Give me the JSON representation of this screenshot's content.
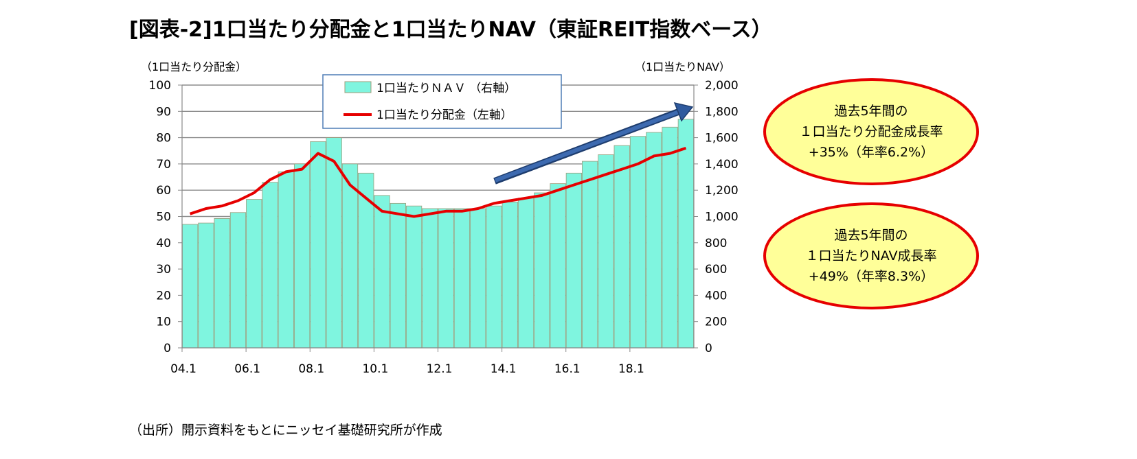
{
  "title": "[図表-2]1口当たり分配金と1口当たりNAV（東証REIT指数ベース）",
  "source": "（出所）開示資料をもとにニッセイ基礎研究所が作成",
  "chart_data": {
    "type": "bar",
    "left_axis_label": "（1口当たり分配金）",
    "right_axis_label": "（1口当たりNAV）",
    "left_ylim": [
      0,
      100
    ],
    "right_ylim": [
      0,
      2000
    ],
    "left_ticks": [
      "0",
      "10",
      "20",
      "30",
      "40",
      "50",
      "60",
      "70",
      "80",
      "90",
      "100"
    ],
    "right_ticks": [
      "0",
      "200",
      "400",
      "600",
      "800",
      "1,000",
      "1,200",
      "1,400",
      "1,600",
      "1,800",
      "2,000"
    ],
    "x_tick_labels": [
      "04.1",
      "06.1",
      "08.1",
      "10.1",
      "12.1",
      "14.1",
      "16.1",
      "18.1"
    ],
    "grid": true,
    "legend_position": "top-center",
    "series": [
      {
        "name": "1口当たりＮＡＶ （右軸）",
        "kind": "bar",
        "axis": "right",
        "color": "#7ff5df",
        "x": [
          "04.1",
          "04.7",
          "05.1",
          "05.7",
          "06.1",
          "06.7",
          "07.1",
          "07.7",
          "08.1",
          "08.7",
          "09.1",
          "09.7",
          "10.1",
          "10.7",
          "11.1",
          "11.7",
          "12.1",
          "12.7",
          "13.1",
          "13.7",
          "14.1",
          "14.7",
          "15.1",
          "15.7",
          "16.1",
          "16.7",
          "17.1",
          "17.7",
          "18.1",
          "18.7",
          "19.1",
          "19.7"
        ],
        "values": [
          940,
          950,
          985,
          1030,
          1130,
          1260,
          1340,
          1400,
          1570,
          1600,
          1400,
          1330,
          1160,
          1100,
          1080,
          1060,
          1060,
          1060,
          1060,
          1080,
          1110,
          1140,
          1180,
          1250,
          1330,
          1420,
          1470,
          1540,
          1610,
          1640,
          1680,
          1740
        ]
      },
      {
        "name": "1口当たり分配金（左軸）",
        "kind": "line",
        "axis": "left",
        "color": "#e60000",
        "x": [
          "04.1",
          "04.7",
          "05.1",
          "05.7",
          "06.1",
          "06.7",
          "07.1",
          "07.7",
          "08.1",
          "08.7",
          "09.1",
          "09.7",
          "10.1",
          "10.7",
          "11.1",
          "11.7",
          "12.1",
          "12.7",
          "13.1",
          "13.7",
          "14.1",
          "14.7",
          "15.1",
          "15.7",
          "16.1",
          "16.7",
          "17.1",
          "17.7",
          "18.1",
          "18.7",
          "19.1",
          "19.7"
        ],
        "values": [
          51,
          53,
          54,
          56,
          59,
          64,
          67,
          68,
          74,
          71,
          62,
          57,
          52,
          51,
          50,
          51,
          52,
          52,
          53,
          55,
          56,
          57,
          58,
          60,
          62,
          64,
          66,
          68,
          70,
          73,
          74,
          76
        ]
      }
    ],
    "annotations": [
      {
        "line1": "過去5年間の",
        "line2": "１口当たり分配金成長率",
        "line3": "+35%（年率6.2%）"
      },
      {
        "line1": "過去5年間の",
        "line2": "１口当たりNAV成長率",
        "line3": "+49%（年率8.3%）"
      }
    ]
  }
}
